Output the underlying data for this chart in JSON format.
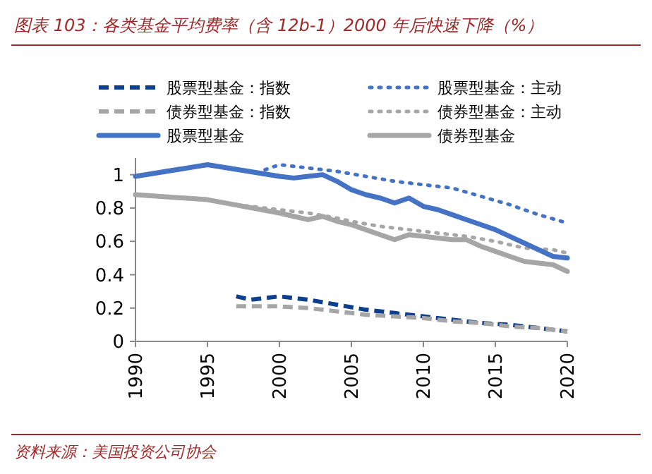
{
  "chart_data": {
    "type": "line",
    "title": "图表 103：各类基金平均费率（含 12b-1）2000 年后快速下降（%）",
    "annotations": [
      "资料来源：美国投资公司协会"
    ],
    "xlim": [
      1990,
      2020
    ],
    "xticks": [
      1990,
      1995,
      2000,
      2005,
      2010,
      2015,
      2020
    ],
    "ylim": [
      0,
      1.1
    ],
    "yticks": [
      0,
      0.2,
      0.4,
      0.6,
      0.8,
      1
    ],
    "grid": false,
    "legend": "top",
    "series": [
      {
        "name": "股票型基金：指数",
        "color": "#0d3f8f",
        "line_style": "dashed",
        "x": [
          1997,
          1998,
          2000,
          2002,
          2004,
          2006,
          2008,
          2010,
          2012,
          2014,
          2016,
          2018,
          2020
        ],
        "values": [
          0.27,
          0.25,
          0.27,
          0.25,
          0.22,
          0.19,
          0.17,
          0.15,
          0.13,
          0.11,
          0.1,
          0.08,
          0.06
        ]
      },
      {
        "name": "股票型基金：主动",
        "color": "#4472c4",
        "line_style": "dotted",
        "x": [
          1999,
          2000,
          2001,
          2002,
          2003,
          2004,
          2006,
          2008,
          2010,
          2012,
          2014,
          2016,
          2018,
          2020
        ],
        "values": [
          1.03,
          1.06,
          1.05,
          1.04,
          1.03,
          1.02,
          0.99,
          0.96,
          0.94,
          0.92,
          0.87,
          0.82,
          0.76,
          0.71
        ]
      },
      {
        "name": "债券型基金：指数",
        "color": "#a6a6a6",
        "line_style": "dashed",
        "x": [
          1997,
          2000,
          2002,
          2004,
          2006,
          2008,
          2010,
          2012,
          2014,
          2016,
          2018,
          2020
        ],
        "values": [
          0.21,
          0.21,
          0.2,
          0.18,
          0.16,
          0.15,
          0.14,
          0.12,
          0.11,
          0.09,
          0.08,
          0.06
        ]
      },
      {
        "name": "债券型基金：主动",
        "color": "#a6a6a6",
        "line_style": "dotted",
        "x": [
          1997,
          1999,
          2000,
          2002,
          2004,
          2005,
          2007,
          2009,
          2011,
          2013,
          2015,
          2017,
          2019,
          2020
        ],
        "values": [
          0.82,
          0.8,
          0.79,
          0.77,
          0.74,
          0.72,
          0.69,
          0.67,
          0.65,
          0.63,
          0.6,
          0.56,
          0.55,
          0.53
        ]
      },
      {
        "name": "股票型基金",
        "color": "#4472c4",
        "line_style": "solid",
        "x": [
          1990,
          1995,
          2000,
          2001,
          2002,
          2003,
          2004,
          2005,
          2006,
          2007,
          2008,
          2009,
          2010,
          2011,
          2012,
          2013,
          2014,
          2015,
          2016,
          2017,
          2018,
          2019,
          2020
        ],
        "values": [
          0.99,
          1.06,
          0.99,
          0.98,
          0.99,
          1.0,
          0.96,
          0.91,
          0.88,
          0.86,
          0.83,
          0.86,
          0.81,
          0.79,
          0.76,
          0.73,
          0.7,
          0.67,
          0.63,
          0.59,
          0.55,
          0.51,
          0.5
        ]
      },
      {
        "name": "债券型基金",
        "color": "#a6a6a6",
        "line_style": "solid",
        "x": [
          1990,
          1995,
          2000,
          2001,
          2002,
          2003,
          2004,
          2005,
          2006,
          2007,
          2008,
          2009,
          2010,
          2011,
          2012,
          2013,
          2014,
          2015,
          2016,
          2017,
          2018,
          2019,
          2020
        ],
        "values": [
          0.88,
          0.85,
          0.77,
          0.75,
          0.73,
          0.75,
          0.72,
          0.7,
          0.67,
          0.64,
          0.61,
          0.64,
          0.63,
          0.62,
          0.61,
          0.61,
          0.57,
          0.54,
          0.51,
          0.48,
          0.47,
          0.46,
          0.42
        ]
      }
    ]
  }
}
